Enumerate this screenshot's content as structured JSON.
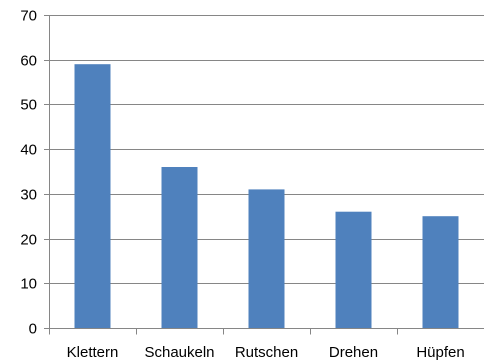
{
  "chart_data": {
    "type": "bar",
    "categories": [
      "Klettern",
      "Schaukeln",
      "Rutschen",
      "Drehen",
      "Hüpfen"
    ],
    "values": [
      59,
      36,
      31,
      26,
      25
    ],
    "title": "",
    "xlabel": "",
    "ylabel": "",
    "ylim": [
      0,
      70
    ],
    "yticks": [
      0,
      10,
      20,
      30,
      40,
      50,
      60,
      70
    ],
    "grid": true,
    "legend": "none",
    "colors": {
      "bar": "#4f81bd",
      "grid": "#868686",
      "axis": "#868686"
    }
  }
}
